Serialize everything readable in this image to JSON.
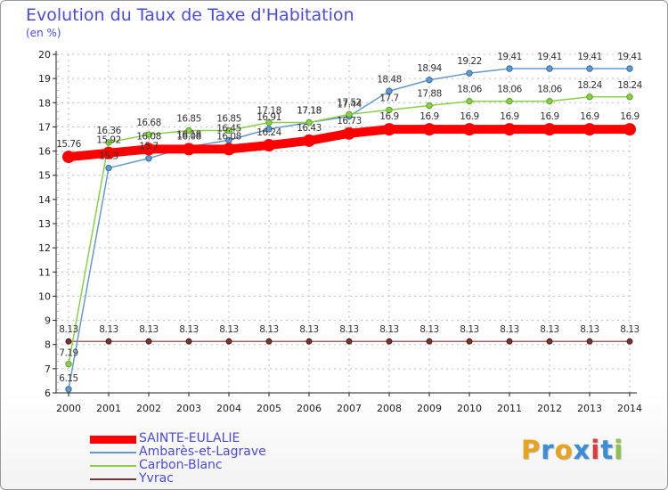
{
  "chart_data": {
    "type": "line",
    "title": "Evolution du Taux de Taxe d'Habitation",
    "subtitle": "(en %)",
    "xlabel": "",
    "ylabel": "",
    "ylim": [
      6,
      20
    ],
    "yticks": [
      6,
      7,
      8,
      9,
      10,
      11,
      12,
      13,
      14,
      15,
      16,
      17,
      18,
      19,
      20
    ],
    "categories": [
      "2000",
      "2001",
      "2002",
      "2003",
      "2004",
      "2005",
      "2006",
      "2007",
      "2008",
      "2009",
      "2010",
      "2011",
      "2012",
      "2013",
      "2014"
    ],
    "grid": true,
    "legend_position": "bottom-left",
    "series": [
      {
        "name": "SAINTE-EULALIE",
        "color": "#ff0000",
        "values": [
          15.76,
          15.92,
          16.08,
          16.08,
          16.08,
          16.24,
          16.43,
          16.73,
          16.9,
          16.9,
          16.9,
          16.9,
          16.9,
          16.9,
          16.9
        ],
        "labels": [
          "15.76",
          "15.92",
          "16.08",
          "16.08",
          "16.08",
          "16.24",
          "16.43",
          "16.73",
          "16.9",
          "16.9",
          "16.9",
          "16.9",
          "16.9",
          "16.9",
          "16.9"
        ]
      },
      {
        "name": "Ambarès-et-Lagrave",
        "color": "#6699cc",
        "values": [
          6.15,
          15.3,
          15.7,
          16.18,
          16.45,
          16.91,
          17.18,
          17.44,
          18.48,
          18.94,
          19.22,
          19.41,
          19.41,
          19.41,
          19.41
        ],
        "labels": [
          "6.15",
          "15.3",
          "15.7",
          "16.18",
          "16.45",
          "16.91",
          "17.18",
          "17.44",
          "18.48",
          "18.94",
          "19.22",
          "19.41",
          "19.41",
          "19.41",
          "19.41"
        ]
      },
      {
        "name": "Carbon-Blanc",
        "color": "#8bd046",
        "values": [
          7.19,
          16.36,
          16.68,
          16.85,
          16.85,
          17.18,
          17.18,
          17.52,
          17.7,
          17.88,
          18.06,
          18.06,
          18.06,
          18.24,
          18.24
        ],
        "labels": [
          "7.19",
          "16.36",
          "16.68",
          "16.85",
          "16.85",
          "17.18",
          "17.18",
          "17.52",
          "17.7",
          "17.88",
          "18.06",
          "18.06",
          "18.06",
          "18.24",
          "18.24"
        ]
      },
      {
        "name": "Yvrac",
        "color": "#7a3434",
        "values": [
          8.13,
          8.13,
          8.13,
          8.13,
          8.13,
          8.13,
          8.13,
          8.13,
          8.13,
          8.13,
          8.13,
          8.13,
          8.13,
          8.13,
          8.13
        ],
        "labels": [
          "8.13",
          "8.13",
          "8.13",
          "8.13",
          "8.13",
          "8.13",
          "8.13",
          "8.13",
          "8.13",
          "8.13",
          "8.13",
          "8.13",
          "8.13",
          "8.13",
          "8.13"
        ]
      }
    ]
  },
  "logo": {
    "letters": [
      "P",
      "r",
      "o",
      "x",
      "i",
      "t",
      "i"
    ],
    "colors": [
      "#e8a21c",
      "#3b8ed6",
      "#e8a21c",
      "#3b8ed6",
      "#d93a3a",
      "#3b8ed6",
      "#8bc34a"
    ]
  }
}
